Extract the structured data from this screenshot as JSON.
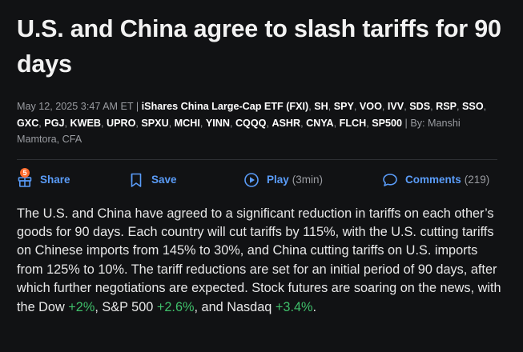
{
  "headline": "U.S. and China agree to slash tariffs for 90 days",
  "meta": {
    "date": "May 12, 2025 3:47 AM ET",
    "separator": "|",
    "tickers": [
      "iShares China Large-Cap ETF (FXI)",
      "SH",
      "SPY",
      "VOO",
      "IVV",
      "SDS",
      "RSP",
      "SSO",
      "GXC",
      "PGJ",
      "KWEB",
      "UPRO",
      "SPXU",
      "MCHI",
      "YINN",
      "CQQQ",
      "ASHR",
      "CNYA",
      "FLCH",
      "SP500"
    ],
    "by_label": "By:",
    "author": "Manshi Mamtora, CFA"
  },
  "actions": {
    "share": {
      "label": "Share",
      "badge": "5"
    },
    "save": {
      "label": "Save"
    },
    "play": {
      "label": "Play",
      "duration": "(3min)"
    },
    "comments": {
      "label": "Comments",
      "count": "(219)"
    }
  },
  "body": {
    "text_1": "The U.S. and China have agreed to a significant reduction in tariffs on each other’s goods for 90 days. Each country will cut tariffs by 115%, with the U.S. cutting tariffs on Chinese imports from 145% to 30%, and China cutting tariffs on U.S. imports from 125% to 10%. The tariff reductions are set for an initial period of 90 days, after which further negotiations are expected. Stock futures are soaring on the news, with the Dow ",
    "dow_change": "+2%",
    "text_2": ", S&P 500 ",
    "sp_change": "+2.6%",
    "text_3": ", and Nasdaq ",
    "nasdaq_change": "+3.4%",
    "text_4": "."
  },
  "colors": {
    "background": "#111214",
    "link_blue": "#5a9cf8",
    "gain_green": "#3fbf6a",
    "badge_orange": "#ff6b2c"
  },
  "icons": {
    "share": "gift-box-icon",
    "save": "bookmark-icon",
    "play": "play-circle-icon",
    "comments": "speech-bubble-icon"
  }
}
